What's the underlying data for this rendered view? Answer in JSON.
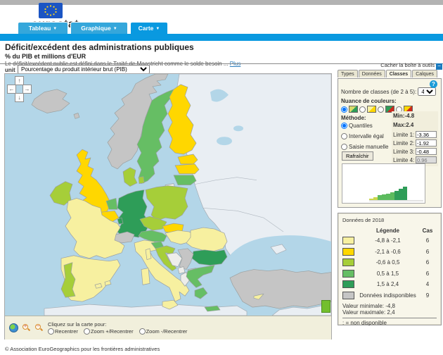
{
  "header": {
    "logo_text": "eurostat"
  },
  "nav_tabs": [
    {
      "label": "Tableau"
    },
    {
      "label": "Graphique"
    },
    {
      "label": "Carte"
    }
  ],
  "accent": {
    "light_blue": "#35a7db",
    "dark_blue": "#0999e0"
  },
  "title_block": {
    "title": "Déficit/excédent des administrations publiques",
    "subtitle": "% du PIB et millions d'EUR",
    "description": "Le déficit/excédent public est défini dans le Traité de Maastricht comme le solde besoin ...",
    "more_link": "Plus"
  },
  "unit": {
    "label": "unit",
    "value": "Pourcentage du produit intérieur brut (PIB)"
  },
  "toolbox": {
    "hide_link": "Cacher la boîte à outils",
    "tabs": [
      "Types",
      "Données",
      "Classes",
      "Calques"
    ],
    "active_tab": "Classes",
    "info_icon": "?",
    "classes_count_label": "Nombre de classes (de 2 à 5):",
    "classes_count_value": "4",
    "color_scheme_label": "Nuance de couleurs:",
    "schemes": [
      {
        "colors": [
          "#d9dc6b",
          "#2e9d58"
        ],
        "selected": true
      },
      {
        "colors": [
          "#f6f1a8",
          "#ffd700"
        ],
        "selected": false
      },
      {
        "colors": [
          "#2e9d58",
          "#cc2a1e"
        ],
        "selected": false
      },
      {
        "colors": [
          "#ffd700",
          "#cc2a1e"
        ],
        "selected": false
      }
    ],
    "method_label": "Méthode:",
    "methods": [
      "Quantiles",
      "Intervalle égal",
      "Saisie manuelle"
    ],
    "selected_method": "Quantiles",
    "min_label": "Min:-4.8",
    "max_label": "Max:2.4",
    "limits": [
      {
        "label": "Limite 1:",
        "value": "-3.36"
      },
      {
        "label": "Limite 2:",
        "value": "-1.92"
      },
      {
        "label": "Limite 3:",
        "value": "-0.48"
      },
      {
        "label": "Limite 4:",
        "value": "0.96",
        "disabled": true
      }
    ],
    "refresh_button": "Rafraîchir",
    "histogram": {
      "bars": [
        {
          "h": 2,
          "c": "#c9d64a"
        },
        {
          "h": 4,
          "c": "#c9d64a"
        },
        {
          "h": 7,
          "c": "#5cbb5e"
        },
        {
          "h": 8,
          "c": "#5cbb5e"
        },
        {
          "h": 9,
          "c": "#5cbb5e"
        },
        {
          "h": 11,
          "c": "#5cbb5e"
        },
        {
          "h": 13,
          "c": "#2e9d58"
        },
        {
          "h": 16,
          "c": "#2e9d58"
        },
        {
          "h": 19,
          "c": "#2e9d58"
        }
      ]
    }
  },
  "data_panel": {
    "title": "Données de 2018",
    "legend_header": "Légende",
    "cases_header": "Cas",
    "classes": [
      {
        "color": "#f7f0a0",
        "label": "-4,8 à -2,1",
        "cases": "6"
      },
      {
        "color": "#ffd700",
        "label": "-2,1 à -0,6",
        "cases": "6"
      },
      {
        "color": "#a6ce39",
        "label": "-0,6 à  0,5",
        "cases": "6"
      },
      {
        "color": "#66be64",
        "label": "0,5 à  1,5",
        "cases": "6"
      },
      {
        "color": "#2e9d58",
        "label": "1,5 à  2,4",
        "cases": "4"
      },
      {
        "color": "#c5c5c5",
        "label": "Données indisponibles",
        "cases": "9"
      }
    ],
    "min_text": "Valeur minimale: -4,8",
    "max_text": "Valeur maximale: 2,4",
    "footnote": ": = non disponible"
  },
  "map_controls": {
    "instruction": "Cliquez sur la carte pour:",
    "options": [
      "Recentrer",
      "Zoom +/Recentrer",
      "Zoom -/Recentrer"
    ]
  },
  "footer": {
    "copyright": "© Association EuroGeographics pour les frontières administratives"
  },
  "map": {
    "sea_color": "#b3d6e8",
    "nodata_land": "#e9eef3",
    "palette": {
      "c1": "#f7f0a0",
      "c2": "#ffd700",
      "c3": "#a6ce39",
      "c4": "#66be64",
      "c5": "#2e9d58",
      "na": "#c5c5c5",
      "lite": "#ededea"
    },
    "country_fills": {
      "iceland": "na",
      "faroe": "na",
      "norway": "na",
      "sweden": "c4",
      "finland": "c2",
      "estonia": "c2",
      "latvia": "c2",
      "lithuania": "c4",
      "kaliningrad": "lite",
      "denmark": "c3",
      "denmark-island": "c3",
      "uk": "c2",
      "ireland": "c3",
      "netherlands": "c4",
      "belgium": "c2",
      "luxembourg": "c5",
      "germany": "c5",
      "poland": "c3",
      "czech": "c3",
      "slovakia": "c2",
      "austria": "c4",
      "switzerland": "na",
      "france": "c1",
      "corsica": "c1",
      "spain": "c1",
      "portugal": "c3",
      "balearic-1": "c1",
      "balearic-2": "c1",
      "italy": "c1",
      "sardinia": "c1",
      "sicily": "c1",
      "slovenia": "c4",
      "croatia": "c3",
      "bosnia": "lite",
      "serbia": "na",
      "montenegro": "lite",
      "albania": "lite",
      "macedonia": "na",
      "hungary": "c1",
      "romania": "c1",
      "bulgaria": "c5",
      "greece": "c4",
      "peloponnese": "c4",
      "crete": "c4",
      "turkey": "na",
      "cyprus": "c1"
    }
  }
}
